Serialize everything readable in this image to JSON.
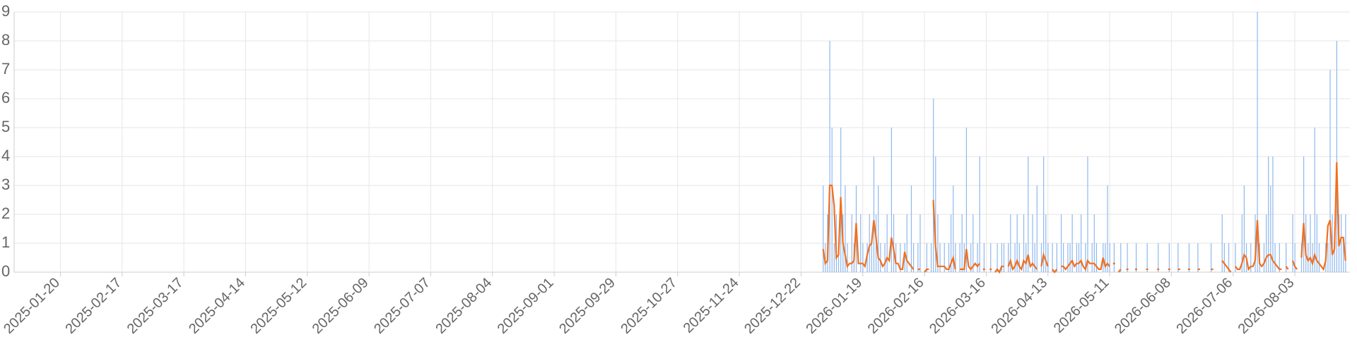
{
  "chart_data": {
    "type": "bar-line",
    "xlim": [
      "2024-12-30",
      "2026-08-28"
    ],
    "xticks": [
      "2025-01-20",
      "2025-02-17",
      "2025-03-17",
      "2025-04-14",
      "2025-05-12",
      "2025-06-09",
      "2025-07-07",
      "2025-08-04",
      "2025-09-01",
      "2025-09-29",
      "2025-10-27",
      "2025-11-24",
      "2025-12-22",
      "2026-01-19",
      "2026-02-16",
      "2026-03-16",
      "2026-04-13",
      "2026-05-11",
      "2026-06-08",
      "2026-07-06",
      "2026-08-03"
    ],
    "ylim": [
      0,
      9
    ],
    "yticks": [
      0,
      1,
      2,
      3,
      4,
      5,
      6,
      7,
      8,
      9
    ],
    "grid": true,
    "x": [
      "2026-01-01",
      "2026-01-02",
      "2026-01-03",
      "2026-01-04",
      "2026-01-05",
      "2026-01-06",
      "2026-01-07",
      "2026-01-08",
      "2026-01-09",
      "2026-01-10",
      "2026-01-11",
      "2026-01-12",
      "2026-01-13",
      "2026-01-14",
      "2026-01-15",
      "2026-01-16",
      "2026-01-17",
      "2026-01-18",
      "2026-01-19",
      "2026-01-20",
      "2026-01-21",
      "2026-01-22",
      "2026-01-23",
      "2026-01-24",
      "2026-01-25",
      "2026-01-26",
      "2026-01-27",
      "2026-01-28",
      "2026-01-29",
      "2026-01-30",
      "2026-01-31",
      "2026-02-01",
      "2026-02-02",
      "2026-02-03",
      "2026-02-04",
      "2026-02-05",
      "2026-02-06",
      "2026-02-07",
      "2026-02-08",
      "2026-02-09",
      "2026-02-10",
      "2026-02-11",
      "2026-02-12",
      "2026-02-13",
      "2026-02-14",
      "2026-02-15",
      "2026-02-16",
      "2026-02-17",
      "2026-02-18",
      "2026-02-19",
      "2026-02-20",
      "2026-02-21",
      "2026-02-22",
      "2026-02-23",
      "2026-02-24",
      "2026-02-25",
      "2026-02-26",
      "2026-02-27",
      "2026-02-28",
      "2026-03-01",
      "2026-03-02",
      "2026-03-03",
      "2026-03-04",
      "2026-03-05",
      "2026-03-06",
      "2026-03-07",
      "2026-03-08",
      "2026-03-09",
      "2026-03-10",
      "2026-03-11",
      "2026-03-12",
      "2026-03-13",
      "2026-03-14",
      "2026-03-15",
      "2026-03-16",
      "2026-03-17",
      "2026-03-18",
      "2026-03-19",
      "2026-03-20",
      "2026-03-21",
      "2026-03-22",
      "2026-03-23",
      "2026-03-24",
      "2026-03-25",
      "2026-03-26",
      "2026-03-27",
      "2026-03-28",
      "2026-03-29",
      "2026-03-30",
      "2026-03-31",
      "2026-04-01",
      "2026-04-02",
      "2026-04-03",
      "2026-04-04",
      "2026-04-05",
      "2026-04-06",
      "2026-04-07",
      "2026-04-08",
      "2026-04-09",
      "2026-04-10",
      "2026-04-11",
      "2026-04-12",
      "2026-04-13",
      "2026-04-14",
      "2026-04-15",
      "2026-04-16",
      "2026-04-17",
      "2026-04-18",
      "2026-04-19",
      "2026-04-20",
      "2026-04-21",
      "2026-04-22",
      "2026-04-23",
      "2026-04-24",
      "2026-04-25",
      "2026-04-26",
      "2026-04-27",
      "2026-04-28",
      "2026-04-29",
      "2026-04-30",
      "2026-05-01",
      "2026-05-02",
      "2026-05-03",
      "2026-05-04",
      "2026-05-05",
      "2026-05-06",
      "2026-05-07",
      "2026-05-08",
      "2026-05-09",
      "2026-05-10",
      "2026-05-11",
      "2026-05-12",
      "2026-05-13",
      "2026-05-14",
      "2026-05-15",
      "2026-05-16",
      "2026-05-17",
      "2026-05-18",
      "2026-05-19",
      "2026-05-20",
      "2026-05-21",
      "2026-05-22",
      "2026-05-23",
      "2026-05-24",
      "2026-05-25",
      "2026-05-26",
      "2026-05-27",
      "2026-05-28",
      "2026-05-29",
      "2026-05-30",
      "2026-05-31",
      "2026-06-01",
      "2026-06-02",
      "2026-06-03",
      "2026-06-04",
      "2026-06-05",
      "2026-06-06",
      "2026-06-07",
      "2026-06-08",
      "2026-06-09",
      "2026-06-10",
      "2026-06-11",
      "2026-06-12",
      "2026-06-13",
      "2026-06-14",
      "2026-06-15",
      "2026-06-16",
      "2026-06-17",
      "2026-06-18",
      "2026-06-19",
      "2026-06-20",
      "2026-06-21",
      "2026-06-22",
      "2026-06-23",
      "2026-06-24",
      "2026-06-25",
      "2026-06-26",
      "2026-06-27",
      "2026-06-28",
      "2026-06-29",
      "2026-06-30",
      "2026-07-01",
      "2026-07-02",
      "2026-07-03",
      "2026-07-04",
      "2026-07-05",
      "2026-07-06",
      "2026-07-07",
      "2026-07-08",
      "2026-07-09",
      "2026-07-10",
      "2026-07-11",
      "2026-07-12",
      "2026-07-13",
      "2026-07-14",
      "2026-07-15",
      "2026-07-16",
      "2026-07-17",
      "2026-07-18",
      "2026-07-19",
      "2026-07-20",
      "2026-07-21",
      "2026-07-22",
      "2026-07-23",
      "2026-07-24",
      "2026-07-25",
      "2026-07-26",
      "2026-07-27",
      "2026-07-28",
      "2026-07-29",
      "2026-07-30",
      "2026-07-31",
      "2026-08-01",
      "2026-08-02",
      "2026-08-03",
      "2026-08-04",
      "2026-08-05",
      "2026-08-06",
      "2026-08-07",
      "2026-08-08",
      "2026-08-09",
      "2026-08-10",
      "2026-08-11",
      "2026-08-12",
      "2026-08-13",
      "2026-08-14",
      "2026-08-15",
      "2026-08-16",
      "2026-08-17",
      "2026-08-18",
      "2026-08-19",
      "2026-08-20",
      "2026-08-21",
      "2026-08-22",
      "2026-08-23",
      "2026-08-24",
      "2026-08-25",
      "2026-08-26"
    ],
    "series": [
      {
        "kind": "bar",
        "color": "#8fb8ee",
        "values": [
          3,
          1,
          2,
          8,
          5,
          1,
          2,
          1,
          5,
          2,
          3,
          1,
          0,
          2,
          1,
          3,
          0,
          2,
          1,
          0,
          1,
          2,
          1,
          4,
          2,
          3,
          1,
          0,
          1,
          2,
          0,
          5,
          2,
          1,
          0,
          1,
          0,
          1,
          2,
          0,
          3,
          1,
          0,
          1,
          2,
          0,
          0,
          1,
          0,
          1,
          6,
          4,
          2,
          1,
          0,
          1,
          0,
          1,
          2,
          3,
          1,
          0,
          1,
          2,
          1,
          5,
          0,
          1,
          2,
          0,
          1,
          4,
          0,
          1,
          0,
          0,
          1,
          0,
          0,
          1,
          0,
          1,
          1,
          0,
          1,
          2,
          0,
          1,
          2,
          1,
          0,
          2,
          1,
          4,
          0,
          2,
          1,
          3,
          0,
          1,
          4,
          2,
          1,
          0,
          1,
          0,
          1,
          0,
          2,
          1,
          0,
          1,
          1,
          2,
          0,
          1,
          1,
          2,
          0,
          1,
          4,
          0,
          1,
          2,
          1,
          0,
          0,
          1,
          1,
          3,
          1,
          0,
          1,
          0,
          0,
          1,
          0,
          0,
          1,
          0,
          0,
          0,
          1,
          0,
          0,
          0,
          0,
          1,
          0,
          0,
          0,
          0,
          1,
          0,
          0,
          0,
          0,
          1,
          0,
          0,
          0,
          1,
          0,
          0,
          0,
          0,
          1,
          0,
          0,
          0,
          1,
          0,
          0,
          0,
          0,
          0,
          1,
          0,
          0,
          0,
          0,
          2,
          1,
          0,
          1,
          0,
          0,
          1,
          0,
          0,
          2,
          3,
          1,
          0,
          1,
          0,
          2,
          9,
          1,
          0,
          1,
          2,
          4,
          3,
          4,
          1,
          0,
          1,
          0,
          0,
          1,
          0,
          0,
          2,
          1,
          0,
          0,
          1,
          4,
          2,
          1,
          2,
          1,
          5,
          2,
          1,
          0,
          0,
          1,
          1,
          7,
          2,
          1,
          8,
          2,
          2,
          1,
          2
        ]
      },
      {
        "kind": "line",
        "color": "#f07020",
        "values": [
          0.8,
          0.3,
          0.4,
          3.0,
          3.0,
          2.3,
          0.5,
          0.6,
          2.6,
          1.0,
          0.6,
          0.2,
          0.3,
          0.3,
          0.4,
          1.7,
          0.3,
          0.3,
          0.3,
          0.2,
          0.6,
          0.9,
          1.0,
          1.8,
          1.2,
          0.5,
          0.4,
          0.2,
          0.3,
          0.5,
          0.4,
          1.2,
          0.8,
          0.3,
          0.3,
          0.1,
          0.1,
          0.7,
          0.4,
          0.3,
          0.2,
          0.1,
          null,
          0.1,
          0.1,
          null,
          0,
          0.1,
          0.1,
          null,
          2.5,
          0.9,
          0.2,
          0.2,
          0.2,
          0.2,
          0.1,
          0.1,
          0.3,
          0.5,
          0.1,
          null,
          0.1,
          0.1,
          0.1,
          0.8,
          0.2,
          0.1,
          0.2,
          0.3,
          0.2,
          0.3,
          null,
          0.1,
          null,
          null,
          0.1,
          null,
          0,
          0.1,
          0,
          0.2,
          0.2,
          null,
          0.2,
          0.4,
          0.1,
          0.2,
          0.4,
          0.2,
          0.1,
          0.4,
          0.3,
          0.6,
          0.2,
          0.3,
          0.2,
          0.1,
          null,
          0.2,
          0.6,
          0.4,
          0.2,
          null,
          0.1,
          0,
          0.1,
          null,
          0.2,
          0.2,
          0.1,
          0.2,
          0.3,
          0.4,
          0.2,
          0.3,
          0.3,
          0.4,
          0.2,
          0.1,
          0.4,
          0.3,
          0.3,
          0.3,
          0.2,
          0.1,
          0.1,
          0.5,
          0.2,
          0.3,
          0.2,
          null,
          0.3,
          null,
          0,
          0.1,
          null,
          null,
          0.1,
          null,
          null,
          null,
          0.1,
          null,
          null,
          null,
          null,
          0.1,
          null,
          null,
          null,
          null,
          0.1,
          null,
          null,
          null,
          null,
          0.1,
          null,
          null,
          null,
          0.1,
          0.1,
          null,
          null,
          null,
          0.1,
          null,
          null,
          null,
          0.1,
          0.1,
          null,
          null,
          null,
          null,
          0.1,
          0.1,
          null,
          null,
          null,
          0.4,
          0.3,
          0.2,
          0.1,
          0,
          null,
          0.2,
          0.1,
          0.1,
          0.3,
          0.6,
          0.5,
          0.1,
          0.2,
          0.2,
          0.4,
          1.8,
          0.3,
          0.2,
          0.3,
          0.5,
          0.6,
          0.6,
          0.4,
          0.3,
          0.2,
          0.1,
          0.1,
          null,
          0.2,
          0.1,
          null,
          0.4,
          0.2,
          0.1,
          null,
          0.5,
          1.7,
          0.6,
          0.4,
          0.5,
          0.3,
          0.6,
          0.4,
          0.3,
          0.2,
          0.1,
          0.4,
          1.6,
          1.8,
          0.6,
          0.8,
          3.8,
          0.9,
          1.2,
          1.2,
          0.4
        ]
      }
    ]
  }
}
